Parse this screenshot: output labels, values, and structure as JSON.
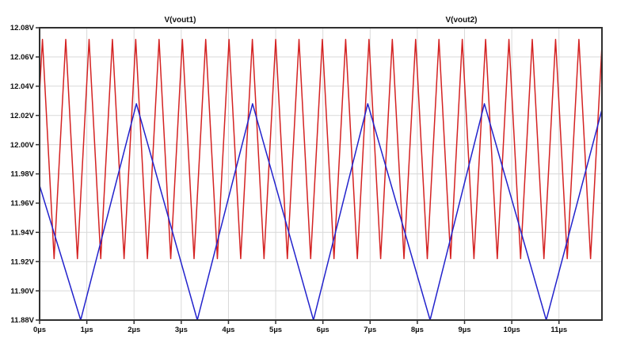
{
  "window": {
    "background_color": "#ffffff",
    "plot_border_color": "#303030",
    "grid_color": "#d9d9d9",
    "tick_color": "#303030",
    "text_color": "#111111"
  },
  "legend": {
    "position": "top",
    "entries": [
      {
        "label": "V(vout1)",
        "color": "#d42222"
      },
      {
        "label": "V(vout2)",
        "color": "#2222cc"
      }
    ]
  },
  "chart_data": {
    "type": "line",
    "title": "",
    "xlabel": "",
    "ylabel": "",
    "x_unit": "µs",
    "y_unit": "V",
    "xlim": [
      0,
      11.91
    ],
    "ylim": [
      11.88,
      12.08
    ],
    "grid": true,
    "legend_position": "top",
    "x_ticks": [
      {
        "v": 0,
        "label": "0µs"
      },
      {
        "v": 1,
        "label": "1µs"
      },
      {
        "v": 2,
        "label": "2µs"
      },
      {
        "v": 3,
        "label": "3µs"
      },
      {
        "v": 4,
        "label": "4µs"
      },
      {
        "v": 5,
        "label": "5µs"
      },
      {
        "v": 6,
        "label": "6µs"
      },
      {
        "v": 7,
        "label": "7µs"
      },
      {
        "v": 8,
        "label": "8µs"
      },
      {
        "v": 9,
        "label": "9µs"
      },
      {
        "v": 10,
        "label": "10µs"
      },
      {
        "v": 11,
        "label": "11µs"
      }
    ],
    "y_ticks": [
      {
        "v": 12.08,
        "label": "12.08V"
      },
      {
        "v": 12.06,
        "label": "12.06V"
      },
      {
        "v": 12.04,
        "label": "12.04V"
      },
      {
        "v": 12.02,
        "label": "12.02V"
      },
      {
        "v": 12.0,
        "label": "12.00V"
      },
      {
        "v": 11.98,
        "label": "11.98V"
      },
      {
        "v": 11.96,
        "label": "11.96V"
      },
      {
        "v": 11.94,
        "label": "11.94V"
      },
      {
        "v": 11.92,
        "label": "11.92V"
      },
      {
        "v": 11.9,
        "label": "11.90V"
      },
      {
        "v": 11.88,
        "label": "11.88V"
      }
    ],
    "series": [
      {
        "name": "V(vout1)",
        "color": "#d42222",
        "waveform": "triangle",
        "v_min": 11.922,
        "v_max": 12.072,
        "period_us": 0.494,
        "first_peak_us": 0.06,
        "points": [
          [
            0,
            12.036
          ],
          [
            0.06,
            12.072
          ],
          [
            0.307,
            11.922
          ],
          [
            0.554,
            12.072
          ],
          [
            0.801,
            11.922
          ],
          [
            1.048,
            12.072
          ],
          [
            1.295,
            11.922
          ],
          [
            1.542,
            12.072
          ],
          [
            1.789,
            11.922
          ],
          [
            2.036,
            12.072
          ],
          [
            2.283,
            11.922
          ],
          [
            2.53,
            12.072
          ],
          [
            2.777,
            11.922
          ],
          [
            3.024,
            12.072
          ],
          [
            3.271,
            11.922
          ],
          [
            3.518,
            12.072
          ],
          [
            3.765,
            11.922
          ],
          [
            4.012,
            12.072
          ],
          [
            4.259,
            11.922
          ],
          [
            4.506,
            12.072
          ],
          [
            4.753,
            11.922
          ],
          [
            5.0,
            12.072
          ],
          [
            5.247,
            11.922
          ],
          [
            5.494,
            12.072
          ],
          [
            5.741,
            11.922
          ],
          [
            5.988,
            12.072
          ],
          [
            6.235,
            11.922
          ],
          [
            6.482,
            12.072
          ],
          [
            6.729,
            11.922
          ],
          [
            6.976,
            12.072
          ],
          [
            7.223,
            11.922
          ],
          [
            7.47,
            12.072
          ],
          [
            7.717,
            11.922
          ],
          [
            7.964,
            12.072
          ],
          [
            8.211,
            11.922
          ],
          [
            8.458,
            12.072
          ],
          [
            8.705,
            11.922
          ],
          [
            8.952,
            12.072
          ],
          [
            9.199,
            11.922
          ],
          [
            9.446,
            12.072
          ],
          [
            9.693,
            11.922
          ],
          [
            9.94,
            12.072
          ],
          [
            10.187,
            11.922
          ],
          [
            10.434,
            12.072
          ],
          [
            10.681,
            11.922
          ],
          [
            10.928,
            12.072
          ],
          [
            11.175,
            11.922
          ],
          [
            11.422,
            12.072
          ],
          [
            11.669,
            11.922
          ],
          [
            11.91,
            12.068
          ]
        ]
      },
      {
        "name": "V(vout2)",
        "color": "#2222cc",
        "waveform": "triangle",
        "v_min": 11.88,
        "v_max": 12.028,
        "period_us": 2.46,
        "first_min_us": 0.87,
        "points": [
          [
            0,
            11.972
          ],
          [
            0.87,
            11.88
          ],
          [
            2.05,
            12.028
          ],
          [
            3.34,
            11.88
          ],
          [
            4.51,
            12.028
          ],
          [
            5.8,
            11.88
          ],
          [
            6.95,
            12.028
          ],
          [
            8.27,
            11.88
          ],
          [
            9.42,
            12.028
          ],
          [
            10.73,
            11.88
          ],
          [
            11.91,
            12.024
          ]
        ]
      }
    ]
  }
}
